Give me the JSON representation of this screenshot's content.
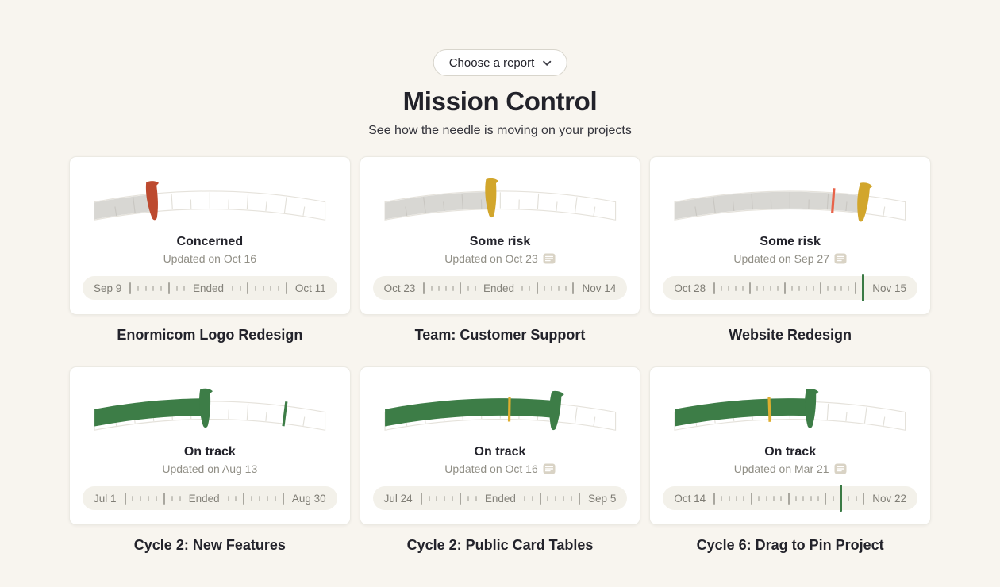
{
  "header": {
    "report_picker_label": "Choose a report",
    "title": "Mission Control",
    "subtitle": "See how the needle is moving on your projects"
  },
  "colors": {
    "accent_green": "#3d7d47",
    "alert_red": "#bd4a2f",
    "warn_yellow": "#d2a62c",
    "marker_orange": "#e8634a",
    "marker_yellow": "#dfae2f",
    "gray_fill": "#d8d7d3",
    "timeline_marker_green": "#3a7a44"
  },
  "cards": [
    {
      "title": "Enormicom Logo Redesign",
      "status": "Concerned",
      "updated": "Updated on Oct 16",
      "has_note_icon": false,
      "gauge": {
        "fill_percent": 25,
        "fill_style": "gray",
        "needle_percent": 25,
        "needle_color": "#bd4a2f",
        "marker_percent": null,
        "marker_color": null
      },
      "timeline": {
        "start_date": "Sep 9",
        "end_date": "Oct 11",
        "ended_label": "Ended",
        "tokens": [
          "T",
          "s",
          "s",
          "s",
          "s",
          "T",
          "s",
          "s",
          "E",
          "s",
          "s",
          "T",
          "s",
          "s",
          "s",
          "s",
          "T"
        ]
      }
    },
    {
      "title": "Team: Customer Support",
      "status": "Some risk",
      "updated": "Updated on Oct 23",
      "has_note_icon": true,
      "gauge": {
        "fill_percent": 46,
        "fill_style": "gray",
        "needle_percent": 46,
        "needle_color": "#d2a62c",
        "marker_percent": null,
        "marker_color": null
      },
      "timeline": {
        "start_date": "Oct 23",
        "end_date": "Nov 14",
        "ended_label": "Ended",
        "tokens": [
          "T",
          "s",
          "s",
          "s",
          "s",
          "T",
          "s",
          "s",
          "E",
          "s",
          "s",
          "T",
          "s",
          "s",
          "s",
          "s",
          "T"
        ]
      }
    },
    {
      "title": "Website Redesign",
      "status": "Some risk",
      "updated": "Updated on Sep 27",
      "has_note_icon": true,
      "gauge": {
        "fill_percent": 82,
        "fill_style": "gray",
        "needle_percent": 82,
        "needle_color": "#d2a62c",
        "marker_percent": 69,
        "marker_color": "#e8634a"
      },
      "timeline": {
        "start_date": "Oct 28",
        "end_date": "Nov 15",
        "ended_label": "",
        "tokens": [
          "T",
          "s",
          "s",
          "s",
          "s",
          "T",
          "s",
          "s",
          "s",
          "s",
          "T",
          "s",
          "s",
          "s",
          "s",
          "T",
          "s",
          "s",
          "s",
          "s",
          "T",
          "G"
        ]
      }
    },
    {
      "title": "Cycle 2: New Features",
      "status": "On track",
      "updated": "Updated on Aug 13",
      "has_note_icon": false,
      "gauge": {
        "fill_percent": 48,
        "fill_style": "green",
        "needle_percent": 48,
        "needle_color": "#3d7d47",
        "marker_percent": 83,
        "marker_color": "#3d7d47"
      },
      "timeline": {
        "start_date": "Jul 1",
        "end_date": "Aug 30",
        "ended_label": "Ended",
        "tokens": [
          "T",
          "s",
          "s",
          "s",
          "s",
          "T",
          "s",
          "s",
          "E",
          "s",
          "s",
          "T",
          "s",
          "s",
          "s",
          "s",
          "T"
        ]
      }
    },
    {
      "title": "Cycle 2: Public Card Tables",
      "status": "On track",
      "updated": "Updated on Oct 16",
      "has_note_icon": true,
      "gauge": {
        "fill_percent": 74,
        "fill_style": "green",
        "needle_percent": 74,
        "needle_color": "#3d7d47",
        "marker_percent": 54,
        "marker_color": "#dfae2f"
      },
      "timeline": {
        "start_date": "Jul 24",
        "end_date": "Sep 5",
        "ended_label": "Ended",
        "tokens": [
          "T",
          "s",
          "s",
          "s",
          "s",
          "T",
          "s",
          "s",
          "E",
          "s",
          "s",
          "T",
          "s",
          "s",
          "s",
          "s",
          "T"
        ]
      }
    },
    {
      "title": "Cycle 6: Drag to Pin Project",
      "status": "On track",
      "updated": "Updated on Mar 21",
      "has_note_icon": true,
      "gauge": {
        "fill_percent": 59,
        "fill_style": "green",
        "needle_percent": 59,
        "needle_color": "#3d7d47",
        "marker_percent": 41,
        "marker_color": "#dfae2f"
      },
      "timeline": {
        "start_date": "Oct 14",
        "end_date": "Nov 22",
        "ended_label": "",
        "tokens": [
          "T",
          "s",
          "s",
          "s",
          "s",
          "T",
          "s",
          "s",
          "s",
          "s",
          "T",
          "s",
          "s",
          "s",
          "s",
          "T",
          "s",
          "G",
          "s",
          "s",
          "T"
        ]
      }
    }
  ]
}
